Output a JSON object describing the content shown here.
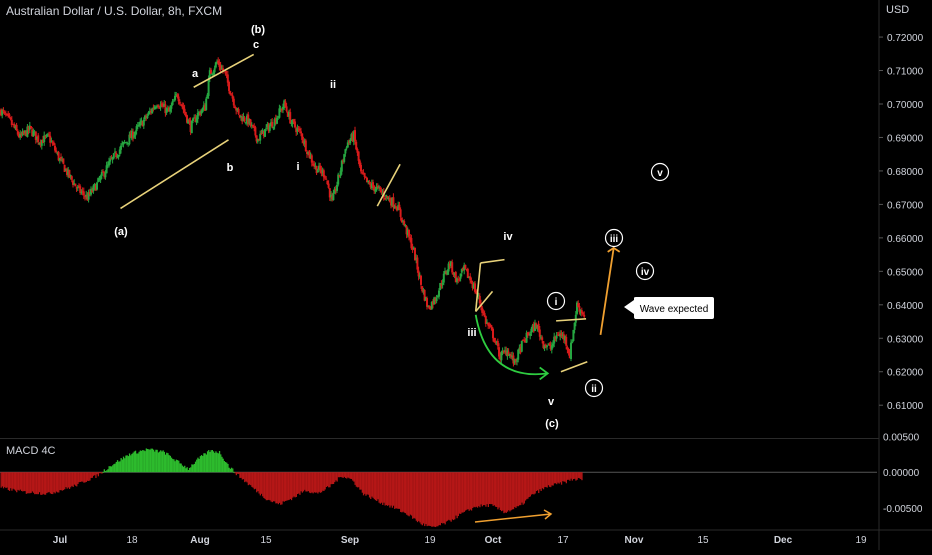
{
  "header": {
    "title": "Australian Dollar / U.S. Dollar, 8h, FXCM",
    "currency": "USD"
  },
  "macd": {
    "title": "MACD 4C"
  },
  "callout": {
    "text": "Wave expected"
  },
  "colors": {
    "bull": "#26a641",
    "bear": "#d91b1b",
    "macd_pos": "#2dbb2d",
    "macd_neg": "#b51717",
    "wave_line": "#e8d27a",
    "green_arrow": "#2ecc40",
    "orange_arrow": "#f0a030",
    "grid": "#1b1b1b"
  },
  "chart_data": [
    {
      "type": "candlestick",
      "title": "Australian Dollar / U.S. Dollar, 8h, FXCM",
      "ylabel": "USD",
      "ylim": [
        0.6005,
        0.7245
      ],
      "yticks": [
        "0.72000",
        "0.71000",
        "0.70000",
        "0.69000",
        "0.68000",
        "0.67000",
        "0.66000",
        "0.65000",
        "0.64000",
        "0.63000",
        "0.62000",
        "0.61000"
      ],
      "xticks": [
        "Jul",
        "18",
        "Aug",
        "15",
        "Sep",
        "19",
        "Oct",
        "17",
        "Nov",
        "15",
        "Dec",
        "19"
      ],
      "grid": false,
      "series_path": [
        [
          0,
          0.698
        ],
        [
          8,
          0.6945
        ],
        [
          16,
          0.69
        ],
        [
          24,
          0.6925
        ],
        [
          32,
          0.689
        ],
        [
          40,
          0.69
        ],
        [
          48,
          0.684
        ],
        [
          56,
          0.679
        ],
        [
          64,
          0.6745
        ],
        [
          72,
          0.672
        ],
        [
          80,
          0.676
        ],
        [
          90,
          0.682
        ],
        [
          100,
          0.687
        ],
        [
          110,
          0.691
        ],
        [
          120,
          0.6955
        ],
        [
          130,
          0.7005
        ],
        [
          140,
          0.6975
        ],
        [
          147,
          0.703
        ],
        [
          152,
          0.6985
        ],
        [
          158,
          0.693
        ],
        [
          164,
          0.697
        ],
        [
          170,
          0.699
        ],
        [
          174,
          0.709
        ],
        [
          180,
          0.7125
        ],
        [
          186,
          0.7095
        ],
        [
          192,
          0.703
        ],
        [
          198,
          0.6965
        ],
        [
          206,
          0.695
        ],
        [
          214,
          0.6895
        ],
        [
          220,
          0.692
        ],
        [
          228,
          0.695
        ],
        [
          236,
          0.7
        ],
        [
          242,
          0.6945
        ],
        [
          250,
          0.691
        ],
        [
          256,
          0.6855
        ],
        [
          262,
          0.681
        ],
        [
          270,
          0.679
        ],
        [
          276,
          0.6705
        ],
        [
          282,
          0.679
        ],
        [
          288,
          0.688
        ],
        [
          294,
          0.6905
        ],
        [
          300,
          0.679
        ],
        [
          306,
          0.676
        ],
        [
          314,
          0.6745
        ],
        [
          322,
          0.672
        ],
        [
          330,
          0.6695
        ],
        [
          338,
          0.662
        ],
        [
          344,
          0.656
        ],
        [
          350,
          0.646
        ],
        [
          356,
          0.639
        ],
        [
          362,
          0.642
        ],
        [
          368,
          0.6475
        ],
        [
          374,
          0.6525
        ],
        [
          380,
          0.647
        ],
        [
          386,
          0.6505
        ],
        [
          392,
          0.647
        ],
        [
          398,
          0.642
        ],
        [
          404,
          0.635
        ],
        [
          410,
          0.631
        ],
        [
          416,
          0.6245
        ],
        [
          422,
          0.6265
        ],
        [
          428,
          0.6225
        ],
        [
          434,
          0.628
        ],
        [
          440,
          0.6315
        ],
        [
          446,
          0.634
        ],
        [
          452,
          0.6285
        ],
        [
          458,
          0.627
        ],
        [
          464,
          0.6315
        ],
        [
          470,
          0.63
        ],
        [
          474,
          0.625
        ],
        [
          480,
          0.64
        ],
        [
          486,
          0.637
        ]
      ],
      "annotations": [
        {
          "label": "(b)",
          "x": 176,
          "y": 0.7233,
          "style": "plain"
        },
        {
          "label": "c",
          "x": 176,
          "y": 0.7193,
          "style": "plain"
        },
        {
          "label": "a",
          "x": 142,
          "y": 0.71,
          "style": "plain"
        },
        {
          "label": "b",
          "x": 164,
          "y": 0.68,
          "style": "plain"
        },
        {
          "label": "(a)",
          "x": 76,
          "y": 0.66,
          "style": "plain"
        },
        {
          "label": "ii",
          "x": 238,
          "y": 0.7055,
          "style": "plain"
        },
        {
          "label": "i",
          "x": 214,
          "y": 0.682,
          "style": "plain"
        },
        {
          "label": "iv",
          "x": 378,
          "y": 0.66,
          "style": "plain"
        },
        {
          "label": "iii",
          "x": 350,
          "y": 0.63,
          "style": "plain"
        },
        {
          "label": "v",
          "x": 413,
          "y": 0.6075,
          "style": "plain"
        },
        {
          "label": "(c)",
          "x": 413,
          "y": 0.598,
          "style": "plain"
        },
        {
          "label": "i",
          "x": 414,
          "y": 0.641,
          "style": "circle"
        },
        {
          "label": "ii",
          "x": 452,
          "y": 0.6175,
          "style": "circle"
        },
        {
          "label": "iii",
          "x": 468,
          "y": 0.6605,
          "style": "circle"
        },
        {
          "label": "iv",
          "x": 496,
          "y": 0.651,
          "style": "circle"
        },
        {
          "label": "v",
          "x": 508,
          "y": 0.68,
          "style": "circle"
        }
      ]
    },
    {
      "type": "bar",
      "title": "MACD 4C",
      "ylim": [
        -0.0078,
        0.0045
      ],
      "yticks": [
        "0.00500",
        "0.00000",
        "-0.00500"
      ],
      "series_path": [
        [
          0,
          -0.0022
        ],
        [
          20,
          -0.0028
        ],
        [
          40,
          -0.003
        ],
        [
          60,
          -0.002
        ],
        [
          80,
          -0.0005
        ],
        [
          92,
          0.001
        ],
        [
          108,
          0.0026
        ],
        [
          122,
          0.0032
        ],
        [
          136,
          0.0028
        ],
        [
          146,
          0.0016
        ],
        [
          156,
          0.0005
        ],
        [
          164,
          0.0018
        ],
        [
          174,
          0.003
        ],
        [
          182,
          0.0028
        ],
        [
          190,
          0.0008
        ],
        [
          198,
          -0.0005
        ],
        [
          212,
          -0.0025
        ],
        [
          222,
          -0.0038
        ],
        [
          232,
          -0.0045
        ],
        [
          244,
          -0.0035
        ],
        [
          254,
          -0.0025
        ],
        [
          264,
          -0.003
        ],
        [
          274,
          -0.002
        ],
        [
          284,
          -0.0005
        ],
        [
          292,
          -0.001
        ],
        [
          302,
          -0.003
        ],
        [
          316,
          -0.0042
        ],
        [
          328,
          -0.005
        ],
        [
          340,
          -0.006
        ],
        [
          350,
          -0.0072
        ],
        [
          360,
          -0.0078
        ],
        [
          372,
          -0.007
        ],
        [
          384,
          -0.0058
        ],
        [
          396,
          -0.0048
        ],
        [
          408,
          -0.0046
        ],
        [
          420,
          -0.0056
        ],
        [
          432,
          -0.0048
        ],
        [
          444,
          -0.003
        ],
        [
          456,
          -0.002
        ],
        [
          468,
          -0.0015
        ],
        [
          476,
          -0.001
        ],
        [
          484,
          -0.001
        ]
      ]
    }
  ]
}
